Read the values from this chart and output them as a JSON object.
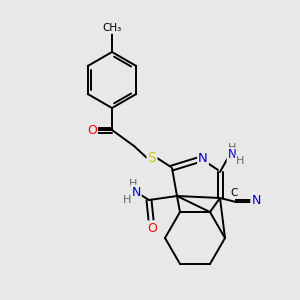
{
  "bg_color": "#e8e8e8",
  "bond_color": "#000000",
  "N_color": "#0000cd",
  "O_color": "#ff0000",
  "S_color": "#cccc00",
  "H_color": "#666666",
  "figsize": [
    3.0,
    3.0
  ],
  "dpi": 100,
  "xlim": [
    0,
    300
  ],
  "ylim": [
    0,
    300
  ]
}
